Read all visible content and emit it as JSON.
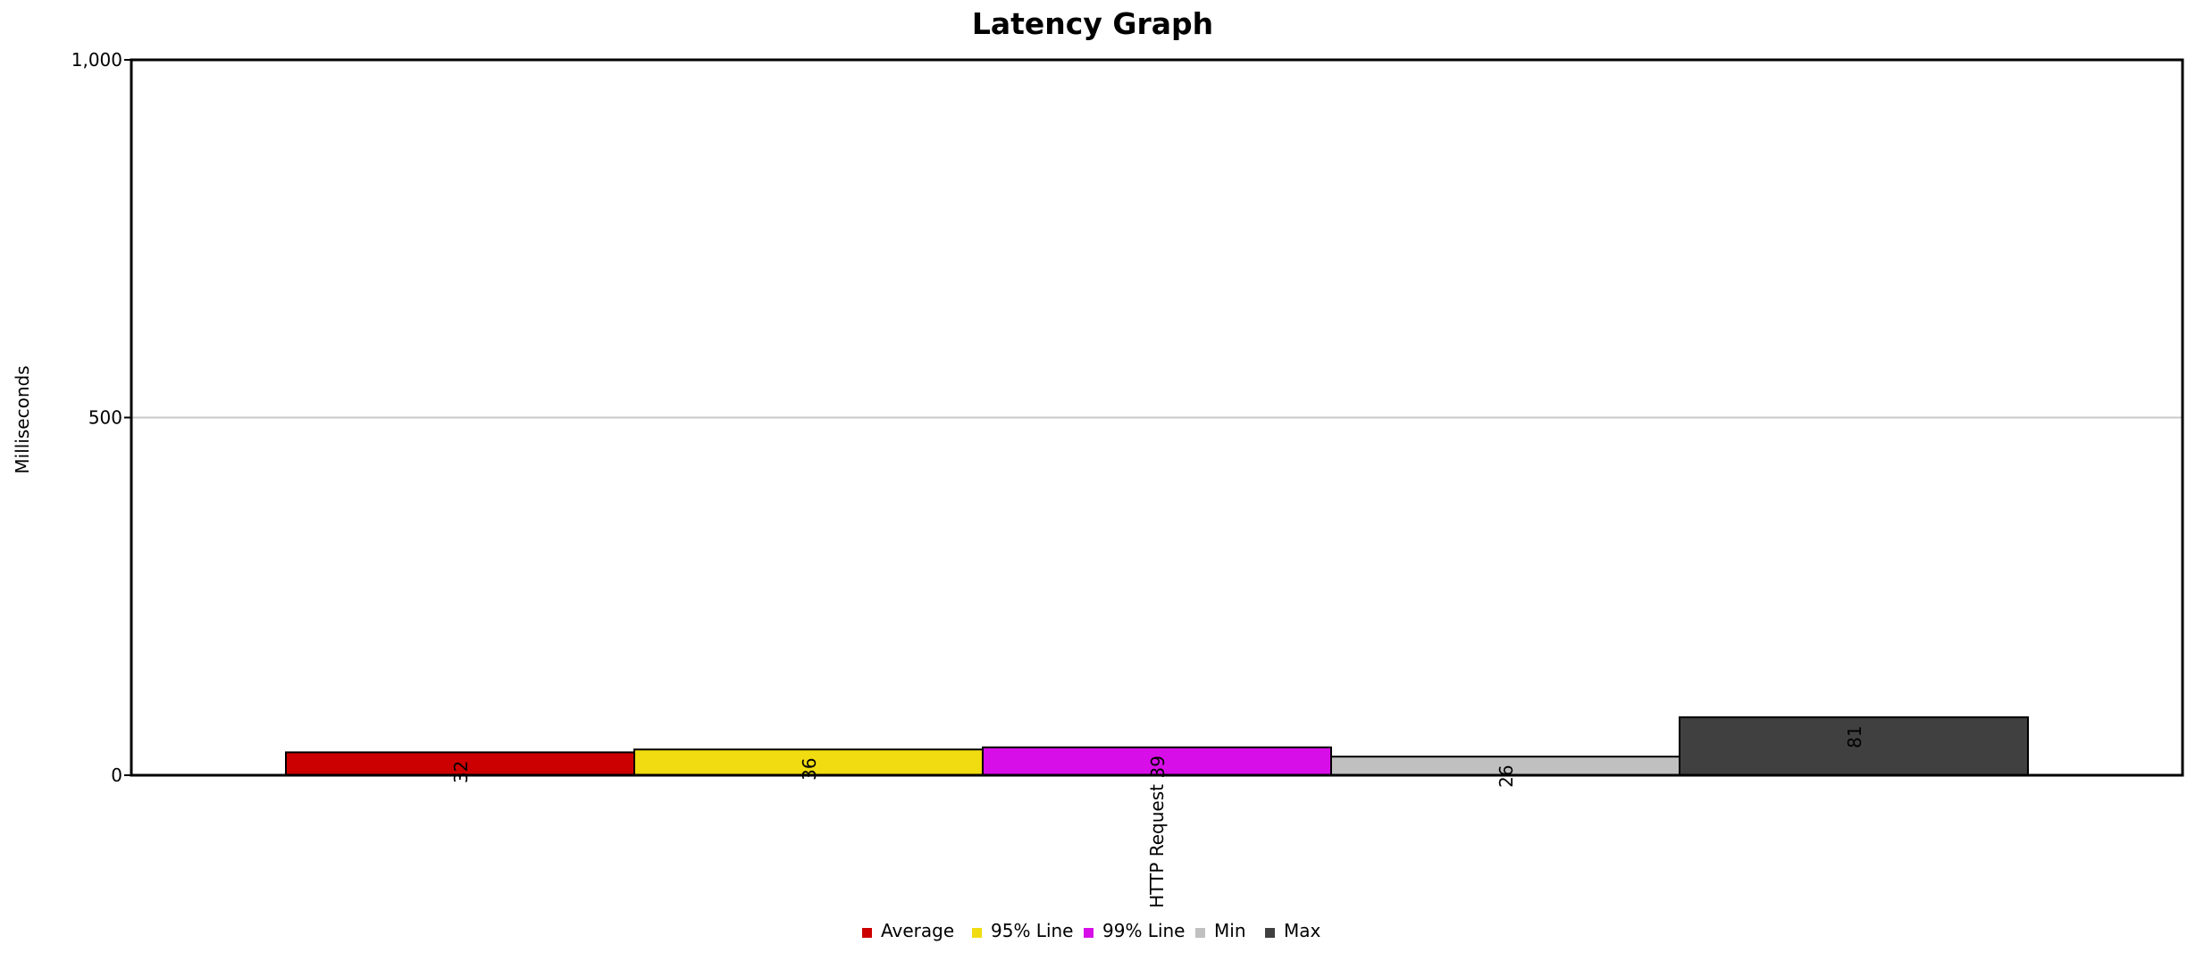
{
  "chart_data": {
    "type": "bar",
    "title": "Latency Graph",
    "xlabel": "",
    "ylabel": "Milliseconds",
    "ylim": [
      0,
      1000
    ],
    "yticks": [
      0,
      500,
      1000
    ],
    "ytick_labels": [
      "0",
      "500",
      "1,000"
    ],
    "categories": [
      "HTTP Request"
    ],
    "series": [
      {
        "name": "Average",
        "values": [
          32
        ],
        "color": "#cc0000"
      },
      {
        "name": "95% Line",
        "values": [
          36
        ],
        "color": "#f0dc10"
      },
      {
        "name": "99% Line",
        "values": [
          39
        ],
        "color": "#d80ee8"
      },
      {
        "name": "Min",
        "values": [
          26
        ],
        "color": "#c0c0c0"
      },
      {
        "name": "Max",
        "values": [
          81
        ],
        "color": "#404040"
      }
    ],
    "gridlines": "horizontal",
    "legend_position": "bottom-center"
  }
}
